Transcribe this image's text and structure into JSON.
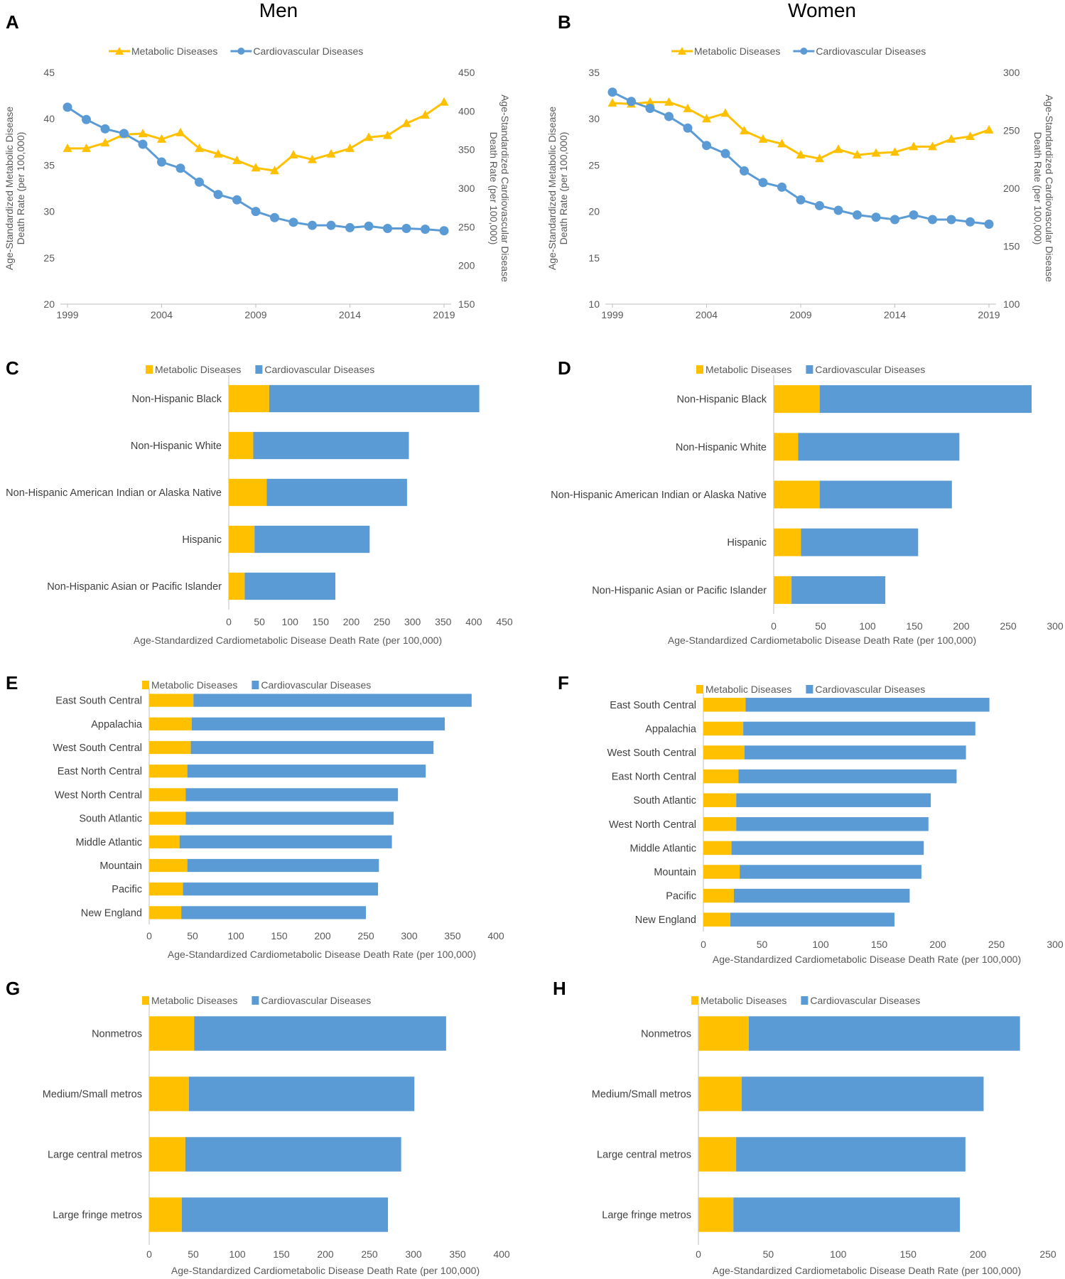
{
  "titles": {
    "men": "Men",
    "women": "Women"
  },
  "colors": {
    "metabolic": "#FFC000",
    "cardiovascular": "#5B9BD5",
    "axis": "#BFBFBF"
  },
  "chart_data": [
    {
      "panel": "A",
      "type": "line",
      "legend": [
        "Metabolic Diseases",
        "Cardiovascular Diseases"
      ],
      "x": [
        1999,
        2000,
        2001,
        2002,
        2003,
        2004,
        2005,
        2006,
        2007,
        2008,
        2009,
        2010,
        2011,
        2012,
        2013,
        2014,
        2015,
        2016,
        2017,
        2018,
        2019
      ],
      "x_ticks": [
        1999,
        2004,
        2009,
        2014,
        2019
      ],
      "series": [
        {
          "name": "Metabolic Diseases",
          "axis": "left",
          "values": [
            36.8,
            36.8,
            37.4,
            38.3,
            38.4,
            37.8,
            38.5,
            36.8,
            36.2,
            35.5,
            34.7,
            34.4,
            36.1,
            35.6,
            36.2,
            36.8,
            38.0,
            38.2,
            39.5,
            40.4,
            41.8
          ]
        },
        {
          "name": "Cardiovascular Diseases",
          "axis": "right",
          "values": [
            405,
            389,
            377,
            371,
            357,
            334,
            326,
            308,
            292,
            285,
            270,
            262,
            256,
            252,
            252,
            249,
            251,
            248,
            248,
            247,
            245
          ]
        }
      ],
      "ylim_left": [
        20,
        45
      ],
      "yticks_left": [
        20,
        25,
        30,
        35,
        40,
        45
      ],
      "ylim_right": [
        150,
        450
      ],
      "yticks_right": [
        150,
        200,
        250,
        300,
        350,
        400,
        450
      ],
      "ylabel_left": [
        "Age-Standardized Metabolic Disease",
        "Death Rate (per 100,000)"
      ],
      "ylabel_right": [
        "Age-Standardized Cardiovascular Disease",
        "Death Rate (per 100,000)"
      ]
    },
    {
      "panel": "B",
      "type": "line",
      "legend": [
        "Metabolic Diseases",
        "Cardiovascular Diseases"
      ],
      "x": [
        1999,
        2000,
        2001,
        2002,
        2003,
        2004,
        2005,
        2006,
        2007,
        2008,
        2009,
        2010,
        2011,
        2012,
        2013,
        2014,
        2015,
        2016,
        2017,
        2018,
        2019
      ],
      "x_ticks": [
        1999,
        2004,
        2009,
        2014,
        2019
      ],
      "series": [
        {
          "name": "Metabolic Diseases",
          "axis": "left",
          "values": [
            31.7,
            31.6,
            31.8,
            31.8,
            31.1,
            30.0,
            30.6,
            28.7,
            27.8,
            27.3,
            26.1,
            25.7,
            26.7,
            26.1,
            26.3,
            26.4,
            27.0,
            27.0,
            27.8,
            28.1,
            28.8
          ]
        },
        {
          "name": "Cardiovascular Diseases",
          "axis": "right",
          "values": [
            283,
            275,
            269,
            262,
            252,
            237,
            230,
            215,
            205,
            201,
            190,
            185,
            181,
            177,
            175,
            173,
            177,
            173,
            173,
            171,
            169
          ]
        }
      ],
      "ylim_left": [
        10,
        35
      ],
      "yticks_left": [
        10,
        15,
        20,
        25,
        30,
        35
      ],
      "ylim_right": [
        100,
        300
      ],
      "yticks_right": [
        100,
        150,
        200,
        250,
        300
      ],
      "ylabel_left": [
        "Age-Standardized Metabolic Disease",
        "Death Rate (per 100,000)"
      ],
      "ylabel_right": [
        "Age-Standardized Cardiovascular Disease",
        "Death Rate (per 100,000)"
      ]
    },
    {
      "panel": "C",
      "type": "bar",
      "legend": [
        "Metabolic Diseases",
        "Cardiovascular Diseases"
      ],
      "categories": [
        "Non-Hispanic Black",
        "Non-Hispanic White",
        "Non-Hispanic American Indian or Alaska Native",
        "Hispanic",
        "Non-Hispanic Asian or Pacific Islander"
      ],
      "series": [
        {
          "name": "Metabolic Diseases",
          "values": [
            66,
            40,
            62,
            42,
            26
          ]
        },
        {
          "name": "Cardiovascular Diseases",
          "values": [
            343,
            254,
            229,
            188,
            148
          ]
        }
      ],
      "xlim": [
        0,
        450
      ],
      "xticks": [
        0,
        50,
        100,
        150,
        200,
        250,
        300,
        350,
        400,
        450
      ],
      "xlabel": "Age-Standardized Cardiometabolic Disease Death Rate (per 100,000)"
    },
    {
      "panel": "D",
      "type": "bar",
      "legend": [
        "Metabolic Diseases",
        "Cardiovascular Diseases"
      ],
      "categories": [
        "Non-Hispanic Black",
        "Non-Hispanic White",
        "Non-Hispanic American Indian or Alaska Native",
        "Hispanic",
        "Non-Hispanic Asian or Pacific Islander"
      ],
      "series": [
        {
          "name": "Metabolic Diseases",
          "values": [
            49,
            26,
            49,
            29,
            19
          ]
        },
        {
          "name": "Cardiovascular Diseases",
          "values": [
            226,
            172,
            141,
            125,
            100
          ]
        }
      ],
      "xlim": [
        0,
        300
      ],
      "xticks": [
        0,
        50,
        100,
        150,
        200,
        250,
        300
      ],
      "xlabel": "Age-Standardized Cardiometabolic Disease Death Rate (per 100,000)"
    },
    {
      "panel": "E",
      "type": "bar",
      "legend": [
        "Metabolic Diseases",
        "Cardiovascular Diseases"
      ],
      "categories": [
        "East South Central",
        "Appalachia",
        "West South Central",
        "East North Central",
        "West North Central",
        "South Atlantic",
        "Middle Atlantic",
        "Mountain",
        "Pacific",
        "New England"
      ],
      "series": [
        {
          "name": "Metabolic Diseases",
          "values": [
            51,
            49,
            48,
            44,
            42,
            42,
            35,
            44,
            39,
            37
          ]
        },
        {
          "name": "Cardiovascular Diseases",
          "values": [
            321,
            292,
            280,
            275,
            245,
            240,
            245,
            221,
            225,
            213
          ]
        }
      ],
      "xlim": [
        0,
        400
      ],
      "xticks": [
        0,
        50,
        100,
        150,
        200,
        250,
        300,
        350,
        400
      ],
      "xlabel": "Age-Standardized Cardiometabolic Disease Death Rate (per 100,000)"
    },
    {
      "panel": "F",
      "type": "bar",
      "legend": [
        "Metabolic Diseases",
        "Cardiovascular Diseases"
      ],
      "categories": [
        "East South Central",
        "Appalachia",
        "West South Central",
        "East North Central",
        "South Atlantic",
        "West North Central",
        "Middle Atlantic",
        "Mountain",
        "Pacific",
        "New England"
      ],
      "series": [
        {
          "name": "Metabolic Diseases",
          "values": [
            36,
            34,
            35,
            30,
            28,
            28,
            24,
            31,
            26,
            23
          ]
        },
        {
          "name": "Cardiovascular Diseases",
          "values": [
            208,
            198,
            189,
            186,
            166,
            164,
            164,
            155,
            150,
            140
          ]
        }
      ],
      "xlim": [
        0,
        300
      ],
      "xticks": [
        0,
        50,
        100,
        150,
        200,
        250,
        300
      ],
      "xlabel": "Age-Standardized Cardiometabolic Disease Death Rate (per 100,000)"
    },
    {
      "panel": "G",
      "type": "bar",
      "legend": [
        "Metabolic Diseases",
        "Cardiovascular Diseases"
      ],
      "categories": [
        "Nonmetros",
        "Medium/Small metros",
        "Large central metros",
        "Large fringe metros"
      ],
      "series": [
        {
          "name": "Metabolic Diseases",
          "values": [
            51,
            45,
            41,
            37
          ]
        },
        {
          "name": "Cardiovascular Diseases",
          "values": [
            286,
            256,
            245,
            234
          ]
        }
      ],
      "xlim": [
        0,
        400
      ],
      "xticks": [
        0,
        50,
        100,
        150,
        200,
        250,
        300,
        350,
        400
      ],
      "xlabel": "Age-Standardized Cardiometabolic Disease Death Rate (per 100,000)"
    },
    {
      "panel": "H",
      "type": "bar",
      "legend": [
        "Metabolic Diseases",
        "Cardiovascular Diseases"
      ],
      "categories": [
        "Nonmetros",
        "Medium/Small metros",
        "Large central metros",
        "Large fringe metros"
      ],
      "series": [
        {
          "name": "Metabolic Diseases",
          "values": [
            36,
            31,
            27,
            25
          ]
        },
        {
          "name": "Cardiovascular Diseases",
          "values": [
            194,
            173,
            164,
            162
          ]
        }
      ],
      "xlim": [
        0,
        250
      ],
      "xticks": [
        0,
        50,
        100,
        150,
        200,
        250
      ],
      "xlabel": "Age-Standardized Cardiometabolic Disease Death Rate (per 100,000)"
    }
  ]
}
